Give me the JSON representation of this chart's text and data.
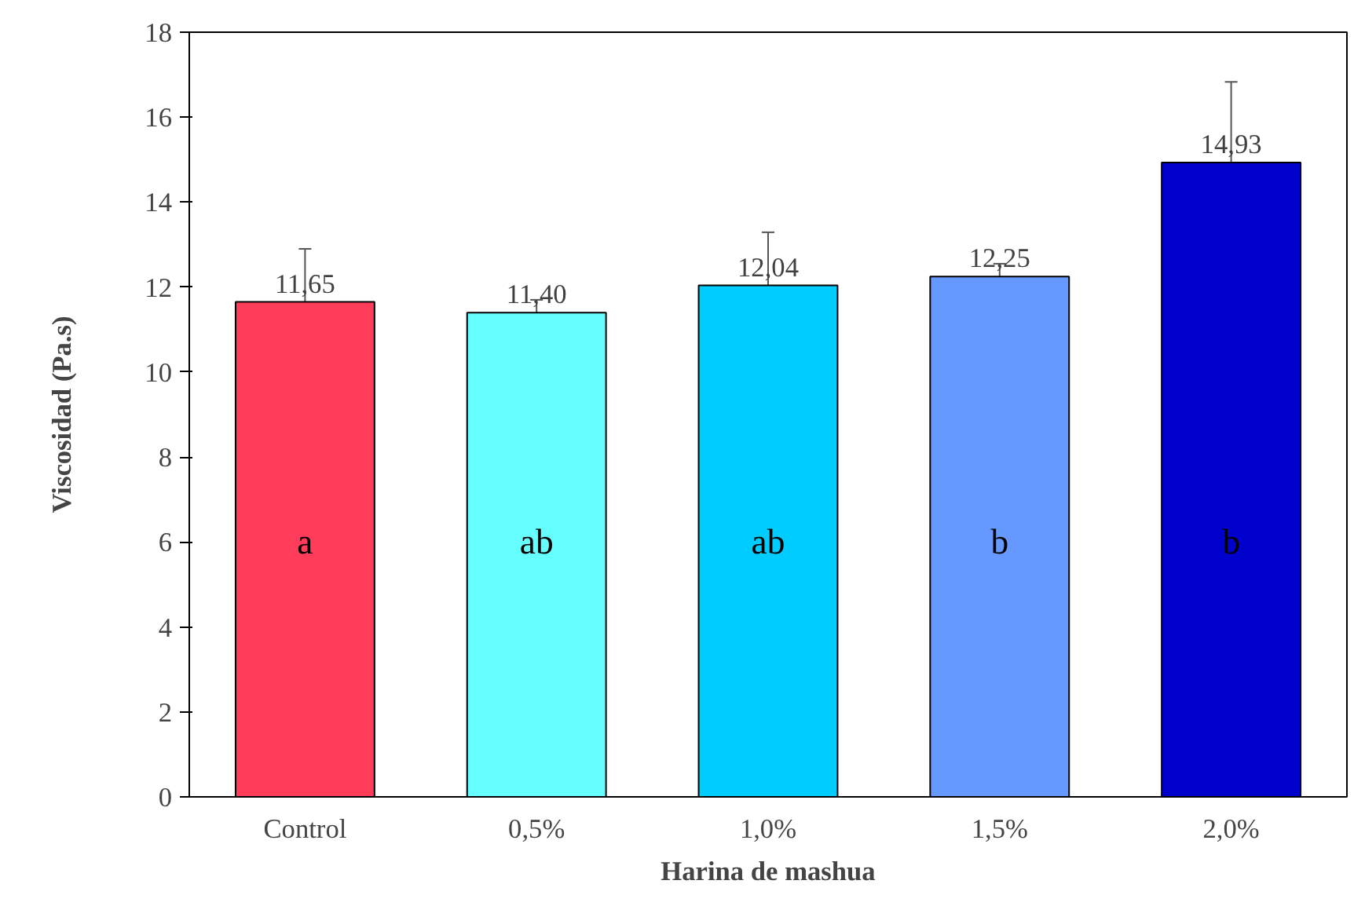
{
  "chart_data": {
    "type": "bar",
    "xlabel": "Harina de mashua",
    "ylabel": "Viscosidad (Pa.s)",
    "categories": [
      "Control",
      "0,5%",
      "1,0%",
      "1,5%",
      "2,0%"
    ],
    "values": [
      11.65,
      11.4,
      12.04,
      12.25,
      14.93
    ],
    "colors": [
      "#ff3d5a",
      "#66ffff",
      "#00ccff",
      "#6699ff",
      "#0000cc"
    ],
    "errors": [
      1.25,
      0.3,
      1.25,
      0.3,
      1.9
    ],
    "value_labels": [
      "11,65",
      "11,40",
      "12,04",
      "12,25",
      "14,93"
    ],
    "annotations": [
      "a",
      "ab",
      "ab",
      "b",
      "b"
    ],
    "ylim": [
      0,
      18
    ],
    "yticks": [
      0,
      2,
      4,
      6,
      8,
      10,
      12,
      14,
      16,
      18
    ],
    "grid": false
  }
}
